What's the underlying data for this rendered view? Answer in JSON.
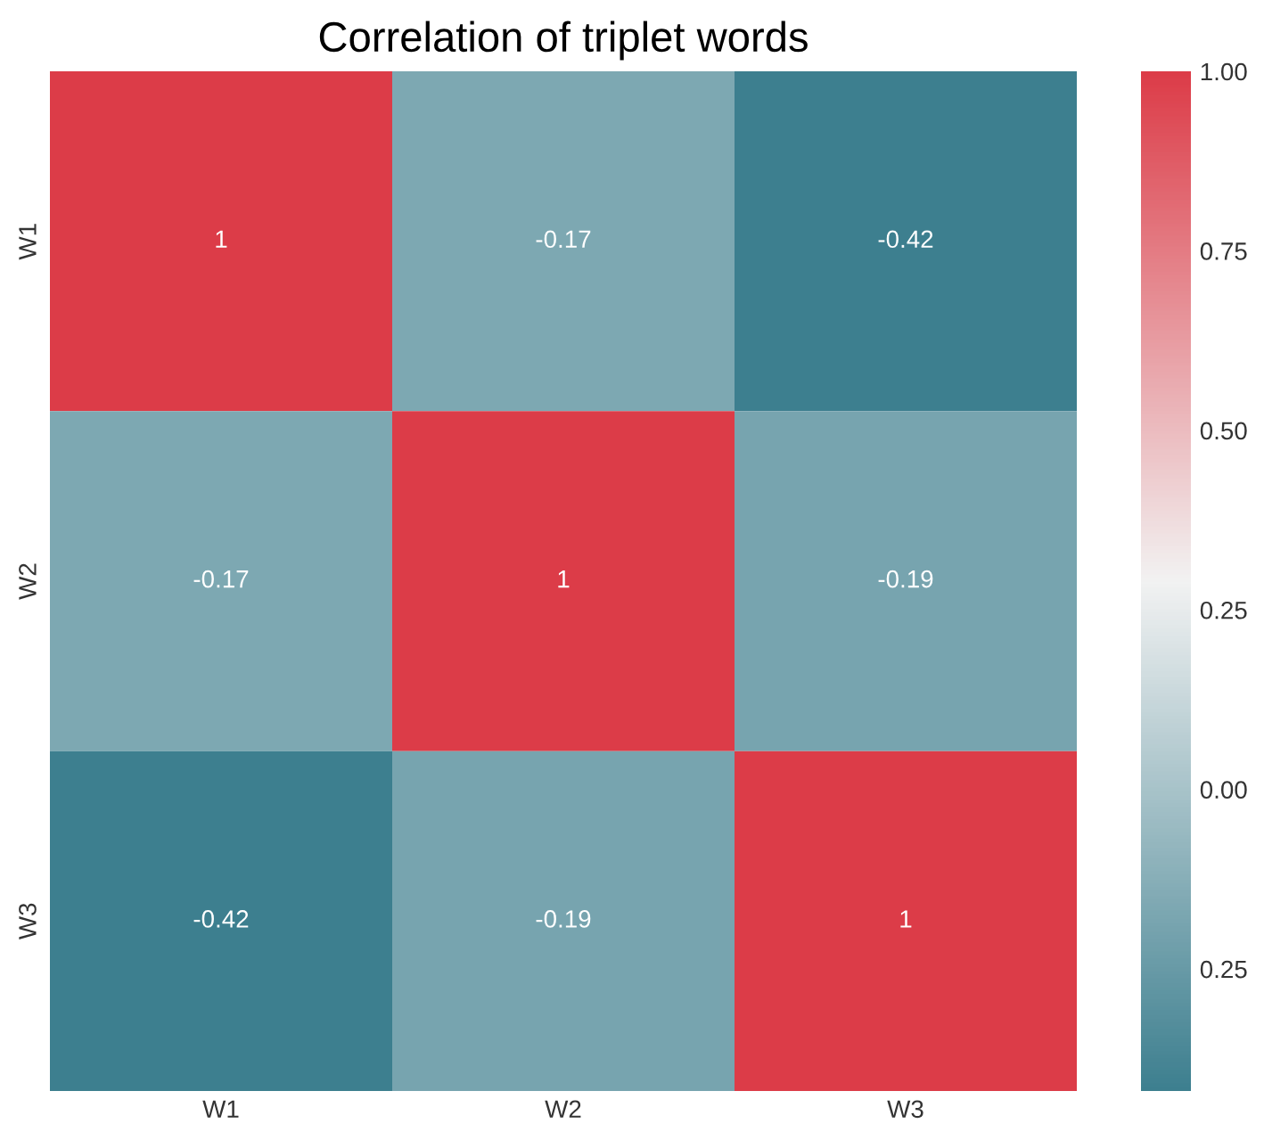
{
  "chart_data": {
    "type": "heatmap",
    "title": "Correlation of triplet words",
    "categories": [
      "W1",
      "W2",
      "W3"
    ],
    "y_categories": [
      "W1",
      "W2",
      "W3"
    ],
    "cells": [
      [
        1,
        -0.17,
        -0.42
      ],
      [
        -0.17,
        1,
        -0.19
      ],
      [
        -0.42,
        -0.19,
        1
      ]
    ],
    "data_labels": true,
    "clim": [
      -0.42,
      1
    ],
    "cticks": [
      {
        "value": 1,
        "label": "1.00"
      },
      0.75,
      {
        "value": 0.5,
        "label": "0.50"
      },
      0.25,
      {
        "value": 0,
        "label": "0.00"
      },
      {
        "value": -0.25,
        "label": "0.25"
      }
    ]
  }
}
